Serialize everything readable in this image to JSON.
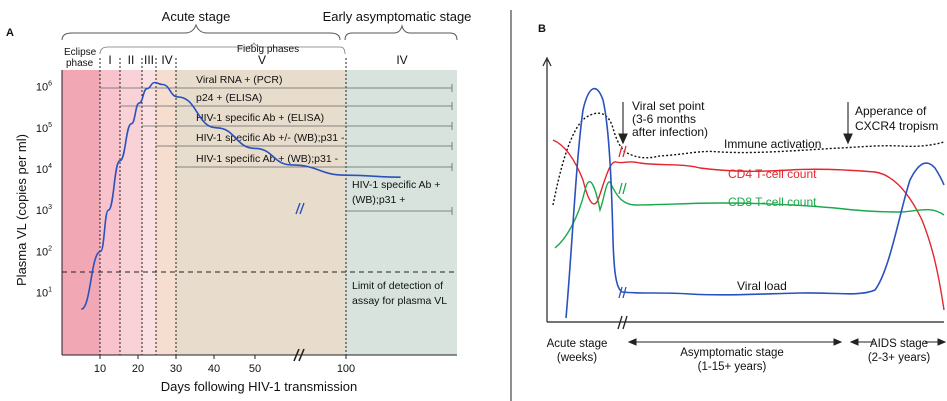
{
  "panel_a": {
    "panel_letter": "A",
    "stage_acute": "Acute stage",
    "stage_early_asymptomatic": "Early asymptomatic stage",
    "eclipse_label_line1": "Eclipse",
    "eclipse_label_line2": "phase",
    "fiebig_title": "Fiebig phases",
    "fiebig_phases": [
      "I",
      "II",
      "III",
      "IV",
      "V",
      "IV"
    ],
    "markers": [
      "Viral RNA + (PCR)",
      "p24 + (ELISA)",
      "HIV-1 specific Ab + (ELISA)",
      "HIV-1 specific Ab +/- (WB);p31 -",
      "HIV-1 specific Ab + (WB);p31 -"
    ],
    "late_marker_line1": "HIV-1 specific Ab +",
    "late_marker_line2": "(WB);p31 +",
    "detection_line1": "Limit of detection of",
    "detection_line2": "assay for plasma VL",
    "colors": {
      "eclipse": "#f2a7b4",
      "phase_I": "#f8c3cc",
      "phase_II": "#f9d2d8",
      "phase_III": "#fbe0e2",
      "phase_IV": "#f5ddd0",
      "phase_V": "#e8ddcc",
      "asymptomatic": "#d7e3dc",
      "curve": "#2a52be"
    }
  },
  "chart_data": {
    "type": "line",
    "xlabel": "Days following HIV-1 transmission",
    "ylabel": "Plasma VL (copies per ml)",
    "x_ticks": [
      "10",
      "20",
      "30",
      "40",
      "50",
      "100"
    ],
    "y_ticks": [
      {
        "base": "10",
        "exp": "1"
      },
      {
        "base": "10",
        "exp": "2"
      },
      {
        "base": "10",
        "exp": "3"
      },
      {
        "base": "10",
        "exp": "4"
      },
      {
        "base": "10",
        "exp": "5"
      },
      {
        "base": "10",
        "exp": "6"
      }
    ],
    "y_scale": "log",
    "ylim": [
      1,
      7
    ],
    "series": [
      {
        "values_x": [
          5,
          10,
          12,
          15,
          18,
          20,
          22,
          24,
          26,
          30,
          40,
          50,
          70,
          100,
          130
        ],
        "values_logy": [
          0.6,
          2.0,
          3.0,
          4.2,
          5.1,
          5.6,
          5.95,
          6.1,
          6.05,
          5.75,
          5.0,
          4.5,
          4.1,
          3.85,
          3.8
        ]
      }
    ],
    "detection_limit_logy": 1.5,
    "grid": false
  },
  "panel_b": {
    "panel_letter": "B",
    "set_point_line1": "Viral set point",
    "set_point_line2": "(3-6 months",
    "set_point_line3": "after infection)",
    "cxcr4_line1": "Apperance of",
    "cxcr4_line2": "CXCR4 tropism",
    "immune_label": "Immune activation",
    "cd4_label": "CD4  T-cell count",
    "cd8_label": "CD8  T-cell count",
    "viral_label": "Viral load",
    "stage_acute_line1": "Acute stage",
    "stage_acute_line2": "(weeks)",
    "stage_asym_line1": "Asymptomatic stage",
    "stage_asym_line2": "(1-15+ years)",
    "stage_aids_line1": "AIDS stage",
    "stage_aids_line2": "(2-3+ years)",
    "colors": {
      "viral": "#2a52be",
      "cd4": "#e3262d",
      "cd8": "#1aa84a",
      "immune": "#111111"
    }
  }
}
